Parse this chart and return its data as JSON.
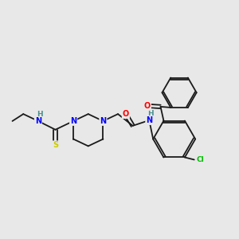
{
  "background_color": "#e8e8e8",
  "bond_color": "#1a1a1a",
  "atom_colors": {
    "N": "#0000ff",
    "O": "#ff0000",
    "S": "#cccc00",
    "Cl": "#00bb00",
    "HN": "#4a8f8f",
    "C": "#1a1a1a"
  },
  "figsize": [
    3.0,
    3.0
  ],
  "dpi": 100,
  "lw": 1.3,
  "fs": 7.0,
  "fs_small": 6.5
}
